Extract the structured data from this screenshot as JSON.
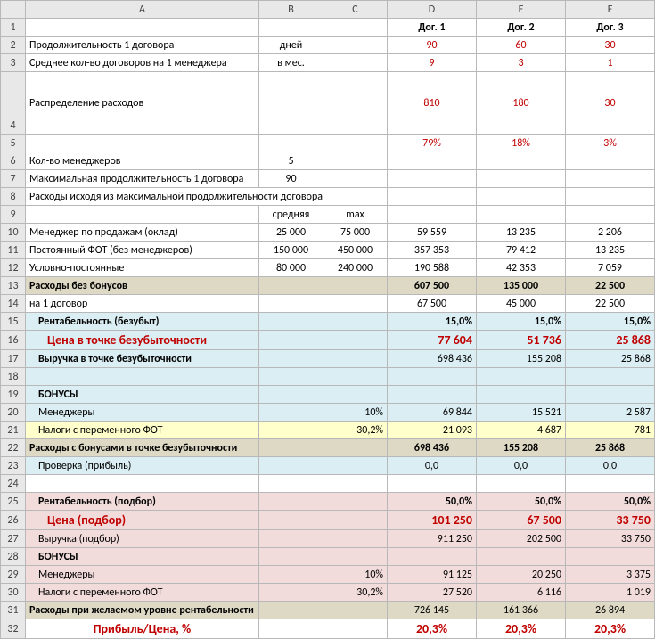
{
  "colHeaders": [
    "A",
    "B",
    "C",
    "D",
    "E",
    "F"
  ],
  "rowNums": [
    1,
    2,
    3,
    4,
    5,
    6,
    7,
    8,
    9,
    10,
    11,
    12,
    13,
    14,
    15,
    16,
    17,
    18,
    19,
    20,
    21,
    22,
    23,
    24,
    25,
    26,
    27,
    28,
    29,
    30,
    31,
    32
  ],
  "header": {
    "d": "Дог. 1",
    "e": "Дог. 2",
    "f": "Дог. 3"
  },
  "r2": {
    "a": "Продолжительность 1 договора",
    "b": "дней",
    "d": "90",
    "e": "60",
    "f": "30"
  },
  "r3": {
    "a": "Среднее кол-во договоров на 1 менеджера",
    "b": "в мес.",
    "d": "9",
    "e": "3",
    "f": "1"
  },
  "r4": {
    "a": "Распределение расходов",
    "d": "810",
    "e": "180",
    "f": "30"
  },
  "r5": {
    "d": "79%",
    "e": "18%",
    "f": "3%"
  },
  "r6": {
    "a": "Кол-во менеджеров",
    "b": "5"
  },
  "r7": {
    "a": "Максимальная продолжительность 1 договора",
    "b": "90"
  },
  "r8": {
    "a": "Расходы исходя из максимальной продолжительности договора"
  },
  "r9": {
    "b": "средняя",
    "c": "max"
  },
  "r10": {
    "a": "Менеджер по продажам (оклад)",
    "b": "25 000",
    "c": "75 000",
    "d": "59 559",
    "e": "13 235",
    "f": "2 206"
  },
  "r11": {
    "a": "Постоянный ФОТ (без менеджеров)",
    "b": "150 000",
    "c": "450 000",
    "d": "357 353",
    "e": "79 412",
    "f": "13 235"
  },
  "r12": {
    "a": "Условно-постоянные",
    "b": "80 000",
    "c": "240 000",
    "d": "190 588",
    "e": "42 353",
    "f": "7 059"
  },
  "r13": {
    "a": "Расходы без бонусов",
    "d": "607 500",
    "e": "135 000",
    "f": "22 500"
  },
  "r14": {
    "a": "на 1 договор",
    "d": "67 500",
    "e": "45 000",
    "f": "22 500"
  },
  "r15": {
    "a": "Рентабельность (безубыт)",
    "d": "15,0%",
    "e": "15,0%",
    "f": "15,0%"
  },
  "r16": {
    "a": "Цена в точке безубыточности",
    "d": "77 604",
    "e": "51 736",
    "f": "25 868"
  },
  "r17": {
    "a": "Выручка в точке безубыточности",
    "d": "698 436",
    "e": "155 208",
    "f": "25 868"
  },
  "r19": {
    "a": "БОНУСЫ"
  },
  "r20": {
    "a": "Менеджеры",
    "c": "10%",
    "d": "69 844",
    "e": "15 521",
    "f": "2 587"
  },
  "r21": {
    "a": "Налоги с переменного ФОТ",
    "c": "30,2%",
    "d": "21 093",
    "e": "4 687",
    "f": "781"
  },
  "r22": {
    "a": "Расходы с бонусами в точке безубыточности",
    "d": "698 436",
    "e": "155 208",
    "f": "25 868"
  },
  "r23": {
    "a": "Проверка (прибыль)",
    "d": "0,0",
    "e": "0,0",
    "f": "0,0"
  },
  "r25": {
    "a": "Рентабельность (подбор)",
    "d": "50,0%",
    "e": "50,0%",
    "f": "50,0%"
  },
  "r26": {
    "a": "Цена (подбор)",
    "d": "101 250",
    "e": "67 500",
    "f": "33 750"
  },
  "r27": {
    "a": "Выручка (подбор)",
    "d": "911 250",
    "e": "202 500",
    "f": "33 750"
  },
  "r28": {
    "a": "БОНУСЫ"
  },
  "r29": {
    "a": "Менеджеры",
    "c": "10%",
    "d": "91 125",
    "e": "20 250",
    "f": "3 375"
  },
  "r30": {
    "a": "Налоги с переменного ФОТ",
    "c": "30,2%",
    "d": "27 520",
    "e": "6 116",
    "f": "1 019"
  },
  "r31": {
    "a": "Расходы при желаемом уровне рентабельности",
    "d": "726 145",
    "e": "161 366",
    "f": "26 894"
  },
  "r32": {
    "a": "Прибыль/Цена, %",
    "d": "20,3%",
    "e": "20,3%",
    "f": "20,3%"
  },
  "colors": {
    "red": "#c00000",
    "tan": "#ddd9c4",
    "blue": "#daeef3",
    "yellow": "#ffffcc",
    "pink": "#f2dcdb",
    "headerGray": "#e8e8e8",
    "gridBorder": "#b8b8b8"
  },
  "fonts": {
    "base": 12,
    "med": 13,
    "big": 14,
    "family": "Calibri"
  }
}
